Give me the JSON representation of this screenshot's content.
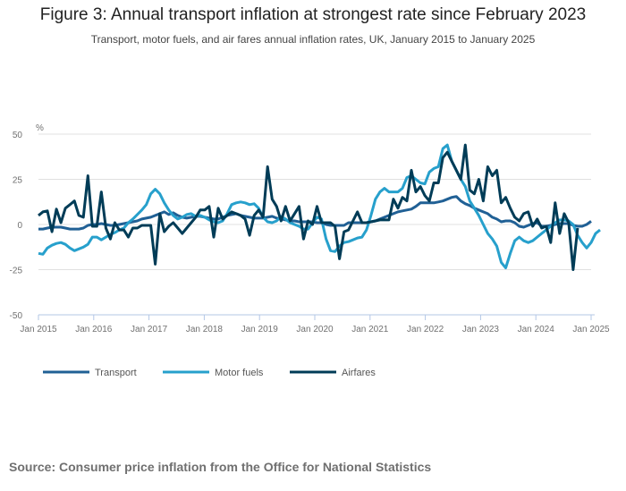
{
  "title": "Figure 3: Annual transport inflation at strongest rate since February 2023",
  "subtitle": "Transport, motor fuels, and air fares annual inflation rates, UK, January 2015 to January 2025",
  "source": "Source: Consumer price inflation from the Office for National Statistics",
  "chart_data": {
    "type": "line",
    "ylabel": "%",
    "ylim": [
      -50,
      50
    ],
    "yticks": [
      "50",
      "25",
      "0",
      "-25",
      "-50"
    ],
    "ytick_values": [
      50,
      25,
      0,
      -25,
      -50
    ],
    "xticks": [
      "Jan 2015",
      "Jan 2016",
      "Jan 2017",
      "Jan 2018",
      "Jan 2019",
      "Jan 2020",
      "Jan 2021",
      "Jan 2022",
      "Jan 2023",
      "Jan 2024",
      "Jan 2025"
    ],
    "x_start": "Jan 2015",
    "x_end": "Jan 2025",
    "frequency": "monthly",
    "grid": true,
    "legend": "bottom-left",
    "series": [
      {
        "name": "Transport",
        "color": "#206095",
        "values": [
          -2.5,
          -2.5,
          -2,
          -1.5,
          -1.5,
          -1.5,
          -2,
          -2.5,
          -2.5,
          -2.5,
          -2,
          -0.5,
          0,
          0,
          0.5,
          0,
          -0.5,
          -0.5,
          0,
          0.5,
          1,
          1.5,
          2,
          3,
          3.5,
          4,
          5,
          6,
          7,
          5.5,
          6.5,
          5,
          4,
          3.5,
          4,
          4.5,
          4.5,
          4,
          3.5,
          3,
          3,
          4,
          5,
          5.5,
          6,
          5,
          4.5,
          4,
          3.5,
          3.5,
          3.5,
          4,
          4.5,
          3.5,
          3,
          2.5,
          2,
          2,
          1.5,
          1.5,
          1.5,
          1.5,
          1,
          1,
          0,
          -0.5,
          -0.5,
          -0.5,
          -0.5,
          1,
          1,
          1,
          1,
          1,
          1.5,
          2,
          3,
          4,
          5,
          6,
          7,
          7.5,
          8,
          8.5,
          10,
          12,
          12,
          12,
          12,
          12.5,
          13,
          14,
          15,
          15.5,
          13,
          11.5,
          10.5,
          9,
          8,
          7,
          6,
          4,
          3,
          1.5,
          2,
          2,
          1,
          -1,
          -1.5,
          -0.5,
          0.5,
          1,
          -1,
          -1,
          -0.5,
          0,
          0.5,
          0.5,
          0.5,
          -0.5,
          -1,
          -1,
          0,
          1.8
        ]
      },
      {
        "name": "Motor fuels",
        "color": "#27a0cc",
        "values": [
          -16,
          -16.5,
          -13,
          -11.5,
          -10.5,
          -10,
          -11,
          -13,
          -14.5,
          -13.5,
          -12.5,
          -11,
          -7,
          -7,
          -8.5,
          -7,
          -5.5,
          -4.5,
          -3,
          -2,
          1,
          3,
          5.5,
          8,
          11,
          17,
          19.5,
          17,
          12,
          8,
          5,
          3,
          4,
          5.5,
          6,
          4.5,
          5,
          4,
          2.5,
          1.5,
          1,
          2,
          6,
          11,
          12,
          12.5,
          12,
          11,
          11.5,
          9,
          4,
          1.5,
          1,
          2,
          4.5,
          3,
          1,
          0,
          -1,
          -2.5,
          -2.5,
          1,
          4,
          3,
          -8,
          -14.5,
          -15,
          -12,
          -10,
          -9.5,
          -8.5,
          -7.5,
          -7,
          -3,
          5,
          14,
          18,
          20,
          18,
          18,
          18,
          20,
          26,
          27,
          25,
          23,
          22.5,
          29,
          31,
          32,
          42,
          44,
          35,
          30,
          25,
          21,
          13,
          9,
          5,
          0,
          -5,
          -8,
          -12,
          -21,
          -24,
          -16,
          -9,
          -7,
          -9,
          -10,
          -9,
          -7,
          -5,
          -3,
          -1,
          1,
          2.5,
          2.5,
          2,
          0,
          -6,
          -10,
          -13,
          -10,
          -5,
          -3
        ]
      },
      {
        "name": "Airfares",
        "color": "#003c57",
        "values": [
          5,
          7,
          7.5,
          -4,
          8.5,
          1,
          9,
          11,
          13,
          5,
          4,
          27,
          -1,
          -1,
          18,
          -2,
          -8,
          1,
          -3,
          -3,
          -7,
          -2,
          -2,
          -0.5,
          -0.5,
          -0.5,
          -22,
          6,
          -4,
          -1,
          1,
          -2,
          -5,
          -2,
          1,
          4,
          8,
          8,
          10,
          -7,
          9,
          3,
          5,
          7,
          6,
          5,
          3,
          -6,
          5,
          8,
          4,
          32,
          14,
          10,
          2,
          10,
          2,
          6,
          10,
          -8,
          2,
          0,
          10,
          1,
          1,
          1,
          -1,
          -19,
          -4,
          -3,
          2,
          7,
          1,
          1,
          1.5,
          2,
          2.5,
          2.5,
          2.5,
          14,
          9,
          15,
          13,
          30,
          18,
          21,
          16,
          13,
          23,
          23,
          37,
          40,
          35,
          30,
          25,
          44,
          19,
          17,
          25,
          13,
          32,
          27,
          30,
          12,
          15,
          9,
          4,
          2,
          6,
          7,
          -1,
          3,
          -2,
          -1,
          -10,
          12,
          -5,
          6,
          1,
          -25,
          -2
        ]
      }
    ]
  }
}
